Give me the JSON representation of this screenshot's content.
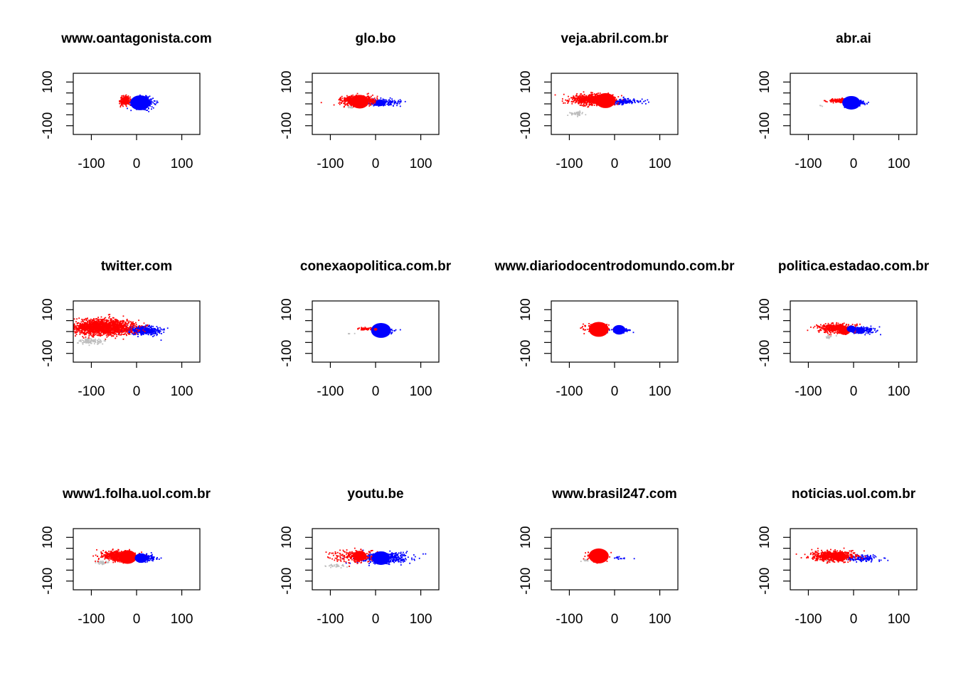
{
  "figure": {
    "colors": {
      "red": "#ff0000",
      "blue": "#0000ff",
      "gray": "#bebebe"
    },
    "layout": {
      "rows": 3,
      "cols": 4
    }
  },
  "chart_data": [
    {
      "type": "scatter",
      "title": "www.oantagonista.com",
      "xlim": [
        -140,
        140
      ],
      "ylim": [
        -140,
        140
      ],
      "xticks": [
        "-100",
        "0",
        "100"
      ],
      "yticks": [
        "-100",
        "100"
      ],
      "clusters": [
        {
          "color": "red",
          "cx": -25,
          "cy": 15,
          "rx": 12,
          "ry": 22,
          "n": 220
        },
        {
          "color": "blue",
          "cx": 15,
          "cy": 5,
          "rx": 30,
          "ry": 28,
          "n": 200
        }
      ],
      "bubbles": [
        {
          "color": "blue",
          "x": 8,
          "y": 5,
          "r": 22
        }
      ]
    },
    {
      "type": "scatter",
      "title": "glo.bo",
      "xlim": [
        -140,
        140
      ],
      "ylim": [
        -140,
        140
      ],
      "xticks": [
        "-100",
        "0",
        "100"
      ],
      "yticks": [
        "-100",
        "100"
      ],
      "clusters": [
        {
          "color": "red",
          "cx": -40,
          "cy": 15,
          "rx": 40,
          "ry": 22,
          "n": 650
        },
        {
          "color": "blue",
          "cx": 20,
          "cy": 5,
          "rx": 42,
          "ry": 18,
          "n": 160
        },
        {
          "color": "gray",
          "cx": -55,
          "cy": -15,
          "rx": 10,
          "ry": 6,
          "n": 15
        }
      ],
      "bubbles": [
        {
          "color": "red",
          "x": -35,
          "y": 10,
          "r": 20
        },
        {
          "color": "blue",
          "x": 10,
          "y": 5,
          "r": 10
        }
      ]
    },
    {
      "type": "scatter",
      "title": "veja.abril.com.br",
      "xlim": [
        -140,
        140
      ],
      "ylim": [
        -140,
        140
      ],
      "xticks": [
        "-100",
        "0",
        "100"
      ],
      "yticks": [
        "-100",
        "100"
      ],
      "clusters": [
        {
          "color": "red",
          "cx": -50,
          "cy": 20,
          "rx": 55,
          "ry": 26,
          "n": 750
        },
        {
          "color": "blue",
          "cx": 15,
          "cy": 10,
          "rx": 45,
          "ry": 15,
          "n": 170
        },
        {
          "color": "gray",
          "cx": -85,
          "cy": -45,
          "rx": 16,
          "ry": 10,
          "n": 45
        }
      ],
      "bubbles": [
        {
          "color": "red",
          "x": -20,
          "y": 15,
          "r": 22
        },
        {
          "color": "blue",
          "x": 15,
          "y": 10,
          "r": 5
        }
      ]
    },
    {
      "type": "scatter",
      "title": "abr.ai",
      "xlim": [
        -140,
        140
      ],
      "ylim": [
        -140,
        140
      ],
      "xticks": [
        "-100",
        "0",
        "100"
      ],
      "yticks": [
        "-100",
        "100"
      ],
      "clusters": [
        {
          "color": "red",
          "cx": -30,
          "cy": 15,
          "rx": 28,
          "ry": 10,
          "n": 160
        },
        {
          "color": "blue",
          "cx": 5,
          "cy": 5,
          "rx": 30,
          "ry": 15,
          "n": 120
        },
        {
          "color": "gray",
          "cx": -72,
          "cy": -10,
          "rx": 3,
          "ry": 3,
          "n": 3
        }
      ],
      "bubbles": [
        {
          "color": "red",
          "x": -15,
          "y": 12,
          "r": 10
        },
        {
          "color": "blue",
          "x": -5,
          "y": 5,
          "r": 20
        }
      ]
    },
    {
      "type": "scatter",
      "title": "twitter.com",
      "xlim": [
        -140,
        140
      ],
      "ylim": [
        -140,
        140
      ],
      "xticks": [
        "-100",
        "0",
        "100"
      ],
      "yticks": [
        "-100",
        "100"
      ],
      "clusters": [
        {
          "color": "red",
          "cx": -75,
          "cy": 20,
          "rx": 70,
          "ry": 38,
          "n": 1700
        },
        {
          "color": "blue",
          "cx": 15,
          "cy": 5,
          "rx": 45,
          "ry": 22,
          "n": 450
        },
        {
          "color": "gray",
          "cx": -100,
          "cy": -45,
          "rx": 30,
          "ry": 15,
          "n": 90
        }
      ],
      "bubbles": []
    },
    {
      "type": "scatter",
      "title": "conexaopolitica.com.br",
      "xlim": [
        -140,
        140
      ],
      "ylim": [
        -140,
        140
      ],
      "xticks": [
        "-100",
        "0",
        "100"
      ],
      "yticks": [
        "-100",
        "100"
      ],
      "clusters": [
        {
          "color": "red",
          "cx": -25,
          "cy": 12,
          "rx": 18,
          "ry": 6,
          "n": 50
        },
        {
          "color": "blue",
          "cx": 20,
          "cy": 5,
          "rx": 35,
          "ry": 15,
          "n": 40
        },
        {
          "color": "gray",
          "cx": -60,
          "cy": -10,
          "rx": 8,
          "ry": 4,
          "n": 4
        }
      ],
      "bubbles": [
        {
          "color": "blue",
          "x": 12,
          "y": 5,
          "r": 22
        },
        {
          "color": "red",
          "x": 0,
          "y": 10,
          "r": 4
        }
      ]
    },
    {
      "type": "scatter",
      "title": "www.diariodocentrodomundo.com.br",
      "xlim": [
        -140,
        140
      ],
      "ylim": [
        -140,
        140
      ],
      "xticks": [
        "-100",
        "0",
        "100"
      ],
      "yticks": [
        "-100",
        "100"
      ],
      "clusters": [
        {
          "color": "red",
          "cx": -40,
          "cy": 15,
          "rx": 30,
          "ry": 22,
          "n": 180
        },
        {
          "color": "blue",
          "cx": 15,
          "cy": 5,
          "rx": 25,
          "ry": 10,
          "n": 50
        }
      ],
      "bubbles": [
        {
          "color": "red",
          "x": -35,
          "y": 10,
          "r": 22
        },
        {
          "color": "blue",
          "x": 10,
          "y": 8,
          "r": 14
        }
      ]
    },
    {
      "type": "scatter",
      "title": "politica.estadao.com.br",
      "xlim": [
        -140,
        140
      ],
      "ylim": [
        -140,
        140
      ],
      "xticks": [
        "-100",
        "0",
        "100"
      ],
      "yticks": [
        "-100",
        "100"
      ],
      "clusters": [
        {
          "color": "red",
          "cx": -40,
          "cy": 15,
          "rx": 40,
          "ry": 22,
          "n": 420
        },
        {
          "color": "blue",
          "cx": 15,
          "cy": 5,
          "rx": 38,
          "ry": 17,
          "n": 200
        },
        {
          "color": "gray",
          "cx": -55,
          "cy": -25,
          "rx": 10,
          "ry": 10,
          "n": 15
        }
      ],
      "bubbles": [
        {
          "color": "red",
          "x": -20,
          "y": 5,
          "r": 13
        },
        {
          "color": "blue",
          "x": -5,
          "y": 12,
          "r": 10
        },
        {
          "color": "blue",
          "x": 15,
          "y": 5,
          "r": 10
        }
      ]
    },
    {
      "type": "scatter",
      "title": "www1.folha.uol.com.br",
      "xlim": [
        -140,
        140
      ],
      "ylim": [
        -140,
        140
      ],
      "xticks": [
        "-100",
        "0",
        "100"
      ],
      "yticks": [
        "-100",
        "100"
      ],
      "clusters": [
        {
          "color": "red",
          "cx": -40,
          "cy": 15,
          "rx": 40,
          "ry": 24,
          "n": 520
        },
        {
          "color": "blue",
          "cx": 15,
          "cy": 5,
          "rx": 35,
          "ry": 17,
          "n": 180
        },
        {
          "color": "gray",
          "cx": -75,
          "cy": -15,
          "rx": 15,
          "ry": 8,
          "n": 35
        }
      ],
      "bubbles": [
        {
          "color": "red",
          "x": -20,
          "y": 10,
          "r": 20
        },
        {
          "color": "blue",
          "x": 10,
          "y": 5,
          "r": 14
        }
      ]
    },
    {
      "type": "scatter",
      "title": "youtu.be",
      "xlim": [
        -140,
        140
      ],
      "ylim": [
        -140,
        140
      ],
      "xticks": [
        "-100",
        "0",
        "100"
      ],
      "yticks": [
        "-100",
        "100"
      ],
      "clusters": [
        {
          "color": "red",
          "cx": -45,
          "cy": 15,
          "rx": 55,
          "ry": 30,
          "n": 230
        },
        {
          "color": "blue",
          "cx": 20,
          "cy": 5,
          "rx": 55,
          "ry": 28,
          "n": 420
        },
        {
          "color": "gray",
          "cx": -85,
          "cy": -30,
          "rx": 25,
          "ry": 10,
          "n": 30
        }
      ],
      "bubbles": [
        {
          "color": "red",
          "x": -35,
          "y": 15,
          "r": 15
        },
        {
          "color": "blue",
          "x": 12,
          "y": 5,
          "r": 20
        }
      ]
    },
    {
      "type": "scatter",
      "title": "www.brasil247.com",
      "xlim": [
        -140,
        140
      ],
      "ylim": [
        -140,
        140
      ],
      "xticks": [
        "-100",
        "0",
        "100"
      ],
      "yticks": [
        "-100",
        "100"
      ],
      "clusters": [
        {
          "color": "red",
          "cx": -40,
          "cy": 15,
          "rx": 25,
          "ry": 22,
          "n": 160
        },
        {
          "color": "blue",
          "cx": 0,
          "cy": 5,
          "rx": 40,
          "ry": 8,
          "n": 20
        },
        {
          "color": "gray",
          "cx": -65,
          "cy": -5,
          "rx": 10,
          "ry": 5,
          "n": 15
        }
      ],
      "bubbles": [
        {
          "color": "red",
          "x": -35,
          "y": 15,
          "r": 22
        }
      ]
    },
    {
      "type": "scatter",
      "title": "noticias.uol.com.br",
      "xlim": [
        -140,
        140
      ],
      "ylim": [
        -140,
        140
      ],
      "xticks": [
        "-100",
        "0",
        "100"
      ],
      "yticks": [
        "-100",
        "100"
      ],
      "clusters": [
        {
          "color": "red",
          "cx": -45,
          "cy": 15,
          "rx": 50,
          "ry": 24,
          "n": 650
        },
        {
          "color": "blue",
          "cx": 15,
          "cy": 5,
          "rx": 40,
          "ry": 16,
          "n": 150
        },
        {
          "color": "gray",
          "cx": -55,
          "cy": -5,
          "rx": 10,
          "ry": 5,
          "n": 10
        }
      ],
      "bubbles": [
        {
          "color": "red",
          "x": -30,
          "y": 12,
          "r": 14
        }
      ]
    }
  ]
}
